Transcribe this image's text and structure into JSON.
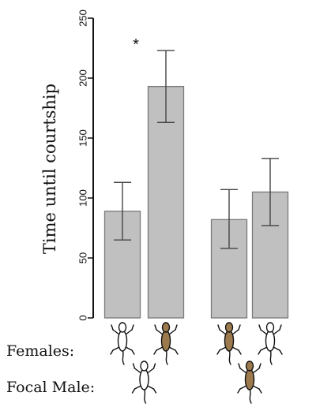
{
  "chart_data": {
    "type": "bar",
    "ylabel": "Time until courtship",
    "ylim": [
      0,
      250
    ],
    "yticks": [
      0,
      50,
      100,
      150,
      200,
      250
    ],
    "categories": [
      {
        "female_icon": "white-lizard-icon",
        "female_color": "#ffffff",
        "male_icon": "white-lizard-icon",
        "male_color": "#ffffff"
      },
      {
        "female_icon": "brown-lizard-icon",
        "female_color": "#9c7a4d",
        "male_icon": "white-lizard-icon",
        "male_color": "#ffffff"
      },
      {
        "female_icon": "brown-lizard-icon",
        "female_color": "#9c7a4d",
        "male_icon": "brown-lizard-icon",
        "male_color": "#9c7a4d"
      },
      {
        "female_icon": "white-lizard-icon",
        "female_color": "#ffffff",
        "male_icon": "brown-lizard-icon",
        "male_color": "#9c7a4d"
      }
    ],
    "values": [
      89,
      193,
      82,
      105
    ],
    "error_upper": [
      113,
      223,
      107,
      133
    ],
    "error_lower": [
      65,
      163,
      58,
      77
    ],
    "annotations": [
      {
        "category_index": 1,
        "text": "*"
      }
    ],
    "bar_color": "#c0c0c0"
  },
  "labels": {
    "females": "Females:",
    "focal_male": "Focal Male:"
  }
}
